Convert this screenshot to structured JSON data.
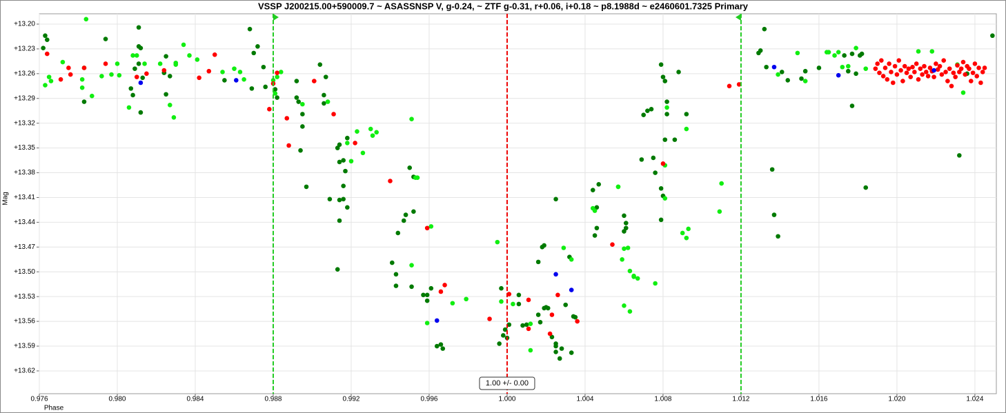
{
  "chart_data": {
    "type": "scatter",
    "title": "VSSP J200215.00+590009.7 ~ ASASSNSP V, g-0.24, ~ ZTF g-0.31, r+0.06, i+0.18 ~ p8.1988d ~ e2460601.7325 Primary",
    "x_label": "Phase",
    "y_label": "Mag",
    "annotation": "1.00 +/- 0.00",
    "xlim": [
      0.976,
      1.0251
    ],
    "ylim": [
      13.1875,
      13.6476
    ],
    "y_inverted": true,
    "grid": true,
    "xticks": [
      {
        "value": 0.976,
        "label": "0.976"
      },
      {
        "value": 0.98,
        "label": "0.980"
      },
      {
        "value": 0.984,
        "label": "0.984"
      },
      {
        "value": 0.988,
        "label": "0.988"
      },
      {
        "value": 0.992,
        "label": "0.992"
      },
      {
        "value": 0.996,
        "label": "0.996"
      },
      {
        "value": 1.0,
        "label": "1.000"
      },
      {
        "value": 1.004,
        "label": "1.004"
      },
      {
        "value": 1.008,
        "label": "1.008"
      },
      {
        "value": 1.012,
        "label": "1.012"
      },
      {
        "value": 1.016,
        "label": "1.016"
      },
      {
        "value": 1.02,
        "label": "1.020"
      },
      {
        "value": 1.024,
        "label": "1.024"
      }
    ],
    "yticks": [
      {
        "value": 13.2,
        "label": "+13.20"
      },
      {
        "value": 13.23,
        "label": "+13.23"
      },
      {
        "value": 13.26,
        "label": "+13.26"
      },
      {
        "value": 13.29,
        "label": "+13.29"
      },
      {
        "value": 13.32,
        "label": "+13.32"
      },
      {
        "value": 13.35,
        "label": "+13.35"
      },
      {
        "value": 13.38,
        "label": "+13.38"
      },
      {
        "value": 13.41,
        "label": "+13.41"
      },
      {
        "value": 13.44,
        "label": "+13.44"
      },
      {
        "value": 13.47,
        "label": "+13.47"
      },
      {
        "value": 13.5,
        "label": "+13.50"
      },
      {
        "value": 13.53,
        "label": "+13.53"
      },
      {
        "value": 13.56,
        "label": "+13.56"
      },
      {
        "value": 13.59,
        "label": "+13.59"
      },
      {
        "value": 13.62,
        "label": "+13.62"
      }
    ],
    "vlines": [
      {
        "x": 0.988,
        "color": "#22cc22"
      },
      {
        "x": 1.0,
        "color": "#ee0000"
      },
      {
        "x": 1.012,
        "color": "#22cc22"
      }
    ],
    "series": [
      {
        "color": "#007a00",
        "x": [
          0.9763,
          0.9764,
          0.9762,
          0.9783,
          0.9794,
          0.9811,
          0.9811,
          0.9812,
          0.9811,
          0.9809,
          0.9808,
          0.9807,
          0.9812,
          0.9813,
          0.9824,
          0.9827,
          0.9825,
          0.9825,
          0.9868,
          0.987,
          0.9872,
          0.9869,
          0.9855,
          0.9875,
          0.9876,
          0.9881,
          0.9882,
          0.9892,
          0.9892,
          0.9893,
          0.9895,
          0.9895,
          0.9894,
          0.9897,
          0.9904,
          0.9907,
          0.9906,
          0.9906,
          0.9913,
          0.9914,
          0.9916,
          0.9917,
          0.9914,
          0.9914,
          0.9916,
          0.9918,
          0.9916,
          0.9909,
          0.9913,
          0.9914,
          0.9918,
          0.995,
          0.9952,
          0.9952,
          0.9947,
          0.9948,
          0.9944,
          0.9941,
          0.9943,
          0.9943,
          0.9951,
          0.9957,
          0.9959,
          0.9959,
          0.9961,
          0.9964,
          0.9966,
          0.9967,
          0.9997,
          0.9998,
          1.0001,
          0.9999,
          1.0,
          0.9996,
          1.0006,
          1.0006,
          1.0008,
          1.001,
          1.0016,
          1.0018,
          1.0019,
          1.002,
          1.0019,
          1.0017,
          1.0016,
          1.0021,
          1.0023,
          1.0025,
          1.0025,
          1.0027,
          1.0025,
          1.0028,
          1.0033,
          1.0025,
          1.0034,
          1.0035,
          1.003,
          1.0032,
          1.0044,
          1.0047,
          1.0046,
          1.0045,
          1.0046,
          1.006,
          1.0061,
          1.0061,
          1.006,
          1.0072,
          1.0074,
          1.007,
          1.0069,
          1.0075,
          1.0076,
          1.0079,
          1.008,
          1.0079,
          1.0079,
          1.008,
          1.0081,
          1.0081,
          1.0082,
          1.0082,
          1.0086,
          1.0088,
          1.0092,
          1.0132,
          1.0129,
          1.013,
          1.0133,
          1.0136,
          1.0137,
          1.0139,
          1.0141,
          1.0144,
          1.0151,
          1.0153,
          1.016,
          1.0173,
          1.0175,
          1.0177,
          1.0181,
          1.0182,
          1.0179,
          1.0177,
          1.0184,
          1.0232,
          1.0249,
          1.0236
        ],
        "values": [
          13.214,
          13.219,
          13.229,
          13.294,
          13.218,
          13.204,
          13.227,
          13.229,
          13.248,
          13.254,
          13.286,
          13.278,
          13.307,
          13.265,
          13.259,
          13.263,
          13.285,
          13.239,
          13.206,
          13.235,
          13.227,
          13.278,
          13.268,
          13.252,
          13.276,
          13.279,
          13.289,
          13.269,
          13.289,
          13.294,
          13.309,
          13.324,
          13.353,
          13.397,
          13.249,
          13.264,
          13.286,
          13.296,
          13.35,
          13.367,
          13.365,
          13.378,
          13.438,
          13.413,
          13.412,
          13.422,
          13.396,
          13.412,
          13.497,
          13.346,
          13.338,
          13.374,
          13.385,
          13.427,
          13.438,
          13.431,
          13.453,
          13.489,
          13.503,
          13.517,
          13.518,
          13.528,
          13.528,
          13.535,
          13.52,
          13.59,
          13.588,
          13.593,
          13.52,
          13.577,
          13.564,
          13.57,
          13.58,
          13.587,
          13.528,
          13.539,
          13.565,
          13.564,
          13.488,
          13.47,
          13.468,
          13.543,
          13.544,
          13.561,
          13.552,
          13.544,
          13.579,
          13.587,
          13.597,
          13.605,
          13.59,
          13.593,
          13.598,
          13.412,
          13.554,
          13.555,
          13.54,
          13.482,
          13.401,
          13.394,
          13.422,
          13.456,
          13.447,
          13.432,
          13.441,
          13.447,
          13.451,
          13.305,
          13.303,
          13.31,
          13.364,
          13.362,
          13.38,
          13.399,
          13.408,
          13.437,
          13.249,
          13.264,
          13.269,
          13.34,
          13.309,
          13.294,
          13.34,
          13.258,
          13.309,
          13.206,
          13.235,
          13.232,
          13.252,
          13.376,
          13.431,
          13.457,
          13.258,
          13.268,
          13.266,
          13.257,
          13.253,
          13.238,
          13.257,
          13.236,
          13.238,
          13.236,
          13.26,
          13.299,
          13.398,
          13.359,
          13.214,
          13.26
        ]
      },
      {
        "color": "#11ee11",
        "x": [
          0.9784,
          0.9763,
          0.9766,
          0.9765,
          0.9772,
          0.9782,
          0.9782,
          0.9783,
          0.9787,
          0.9792,
          0.98,
          0.9797,
          0.9801,
          0.9806,
          0.9808,
          0.981,
          0.9814,
          0.9822,
          0.983,
          0.983,
          0.9827,
          0.9829,
          0.9834,
          0.9837,
          0.9841,
          0.9854,
          0.986,
          0.9863,
          0.9865,
          0.988,
          0.9882,
          0.9881,
          0.9884,
          0.9895,
          0.9908,
          0.9918,
          0.992,
          0.9923,
          0.9926,
          0.993,
          0.9933,
          0.9931,
          0.9951,
          0.9953,
          0.9954,
          0.9961,
          0.9959,
          0.9951,
          0.9972,
          0.9979,
          0.9995,
          0.9997,
          1.0003,
          1.0012,
          1.0012,
          1.0029,
          1.0033,
          1.0044,
          1.0045,
          1.0057,
          1.0057,
          1.006,
          1.0059,
          1.0062,
          1.0063,
          1.0065,
          1.0065,
          1.0067,
          1.006,
          1.0063,
          1.0076,
          1.0081,
          1.0081,
          1.0082,
          1.0092,
          1.0093,
          1.009,
          1.0092,
          1.0109,
          1.011,
          1.0139,
          1.0149,
          1.0153,
          1.0164,
          1.0165,
          1.0168,
          1.017,
          1.0172,
          1.0175,
          1.0179,
          1.0184,
          1.0211,
          1.0218,
          1.0234,
          1.0231
        ],
        "values": [
          13.194,
          13.274,
          13.269,
          13.264,
          13.246,
          13.267,
          13.277,
          13.253,
          13.287,
          13.263,
          13.248,
          13.261,
          13.262,
          13.301,
          13.238,
          13.238,
          13.248,
          13.248,
          13.249,
          13.247,
          13.298,
          13.313,
          13.225,
          13.238,
          13.243,
          13.258,
          13.254,
          13.258,
          13.267,
          13.268,
          13.264,
          13.284,
          13.258,
          13.297,
          13.294,
          13.344,
          13.366,
          13.33,
          13.356,
          13.327,
          13.331,
          13.335,
          13.315,
          13.386,
          13.386,
          13.445,
          13.562,
          13.492,
          13.538,
          13.533,
          13.464,
          13.536,
          13.539,
          13.563,
          13.595,
          13.471,
          13.485,
          13.423,
          13.426,
          13.397,
          13.397,
          13.472,
          13.485,
          13.471,
          13.499,
          13.506,
          13.505,
          13.508,
          13.541,
          13.548,
          13.514,
          13.371,
          13.411,
          13.301,
          13.327,
          13.448,
          13.453,
          13.459,
          13.427,
          13.393,
          13.261,
          13.235,
          13.269,
          13.234,
          13.234,
          13.238,
          13.234,
          13.252,
          13.251,
          13.229,
          13.254,
          13.233,
          13.233,
          13.283,
          13.249
        ]
      },
      {
        "color": "#ff0000",
        "x": [
          0.9764,
          0.9771,
          0.9775,
          0.9776,
          0.9783,
          0.9794,
          0.981,
          0.9815,
          0.9824,
          0.9842,
          0.9847,
          0.985,
          0.9878,
          0.9882,
          0.988,
          0.9887,
          0.9888,
          0.9901,
          0.9911,
          0.9922,
          0.994,
          0.9959,
          0.9968,
          0.9966,
          0.9991,
          1.0001,
          1.0011,
          1.0011,
          1.0022,
          1.0023,
          1.0026,
          1.0036,
          1.0054,
          1.008,
          1.0114,
          1.0119,
          1.0189,
          1.019,
          1.0191,
          1.0192,
          1.0193,
          1.0194,
          1.0195,
          1.0196,
          1.0197,
          1.0198,
          1.0199,
          1.02,
          1.0201,
          1.0202,
          1.0203,
          1.0204,
          1.0205,
          1.0206,
          1.0207,
          1.0208,
          1.0209,
          1.021,
          1.0211,
          1.0212,
          1.0213,
          1.0214,
          1.0215,
          1.0216,
          1.0217,
          1.0218,
          1.0219,
          1.022,
          1.0221,
          1.0222,
          1.0223,
          1.0224,
          1.0225,
          1.0226,
          1.0227,
          1.0228,
          1.0229,
          1.023,
          1.0231,
          1.0232,
          1.0233,
          1.0234,
          1.0235,
          1.0236,
          1.0237,
          1.0238,
          1.0239,
          1.024,
          1.0241,
          1.0242,
          1.0243,
          1.0244,
          1.0245
        ],
        "values": [
          13.236,
          13.267,
          13.253,
          13.261,
          13.253,
          13.248,
          13.264,
          13.26,
          13.256,
          13.265,
          13.257,
          13.237,
          13.303,
          13.259,
          13.272,
          13.314,
          13.347,
          13.269,
          13.309,
          13.344,
          13.39,
          13.447,
          13.516,
          13.524,
          13.557,
          13.527,
          13.534,
          13.569,
          13.575,
          13.552,
          13.528,
          13.56,
          13.467,
          13.369,
          13.275,
          13.273,
          13.254,
          13.248,
          13.259,
          13.244,
          13.263,
          13.253,
          13.267,
          13.248,
          13.258,
          13.271,
          13.251,
          13.261,
          13.244,
          13.256,
          13.269,
          13.251,
          13.259,
          13.254,
          13.264,
          13.252,
          13.258,
          13.248,
          13.267,
          13.254,
          13.261,
          13.251,
          13.258,
          13.263,
          13.253,
          13.257,
          13.264,
          13.248,
          13.255,
          13.251,
          13.261,
          13.244,
          13.258,
          13.269,
          13.254,
          13.275,
          13.259,
          13.264,
          13.25,
          13.258,
          13.254,
          13.246,
          13.261,
          13.251,
          13.254,
          13.269,
          13.259,
          13.248,
          13.263,
          13.253,
          13.271,
          13.258,
          13.253
        ]
      },
      {
        "color": "#0000ee",
        "x": [
          0.9812,
          0.9861,
          0.9964,
          1.0025,
          1.0033,
          1.0137,
          1.017,
          1.0219
        ],
        "values": [
          13.271,
          13.268,
          13.559,
          13.503,
          13.522,
          13.252,
          13.262,
          13.256
        ]
      }
    ]
  }
}
